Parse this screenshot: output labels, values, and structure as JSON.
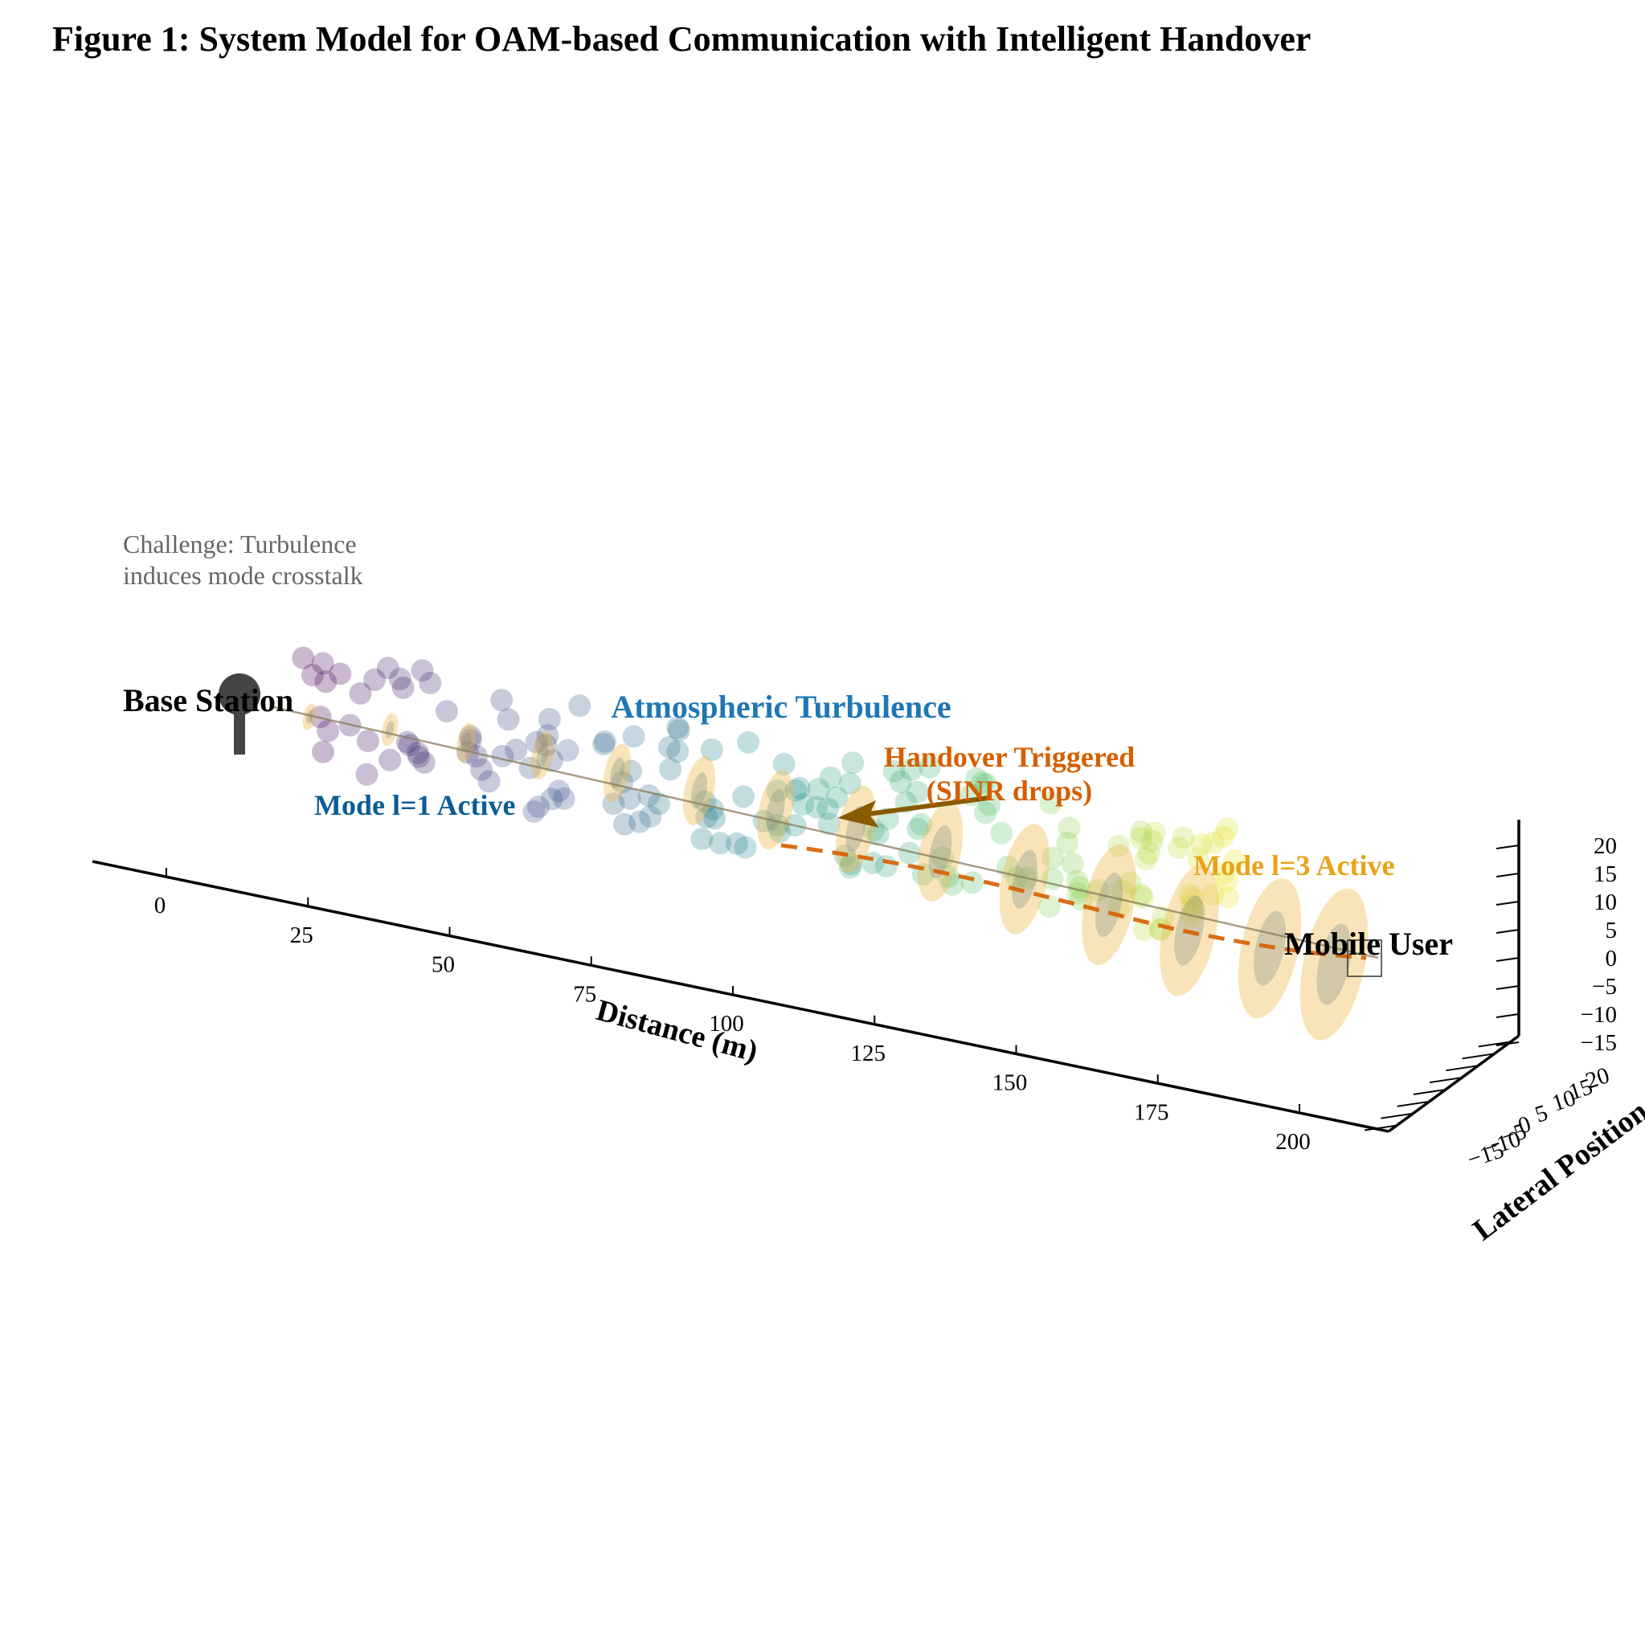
{
  "figure": {
    "title": "Figure 1: System Model for OAM-based Communication with Intelligent Handover",
    "note_lines": [
      "Challenge: Turbulence",
      "induces mode crosstalk"
    ]
  },
  "labels": {
    "base_station": "Base Station",
    "turbulence": "Atmospheric Turbulence",
    "handover_line1": "Handover Triggered",
    "handover_line2": "(SINR drops)",
    "mode1": "Mode l=1 Active",
    "mode3": "Mode l=3 Active",
    "mobile_user": "Mobile User"
  },
  "axes": {
    "x_label": "Distance (m)",
    "x_ticks": [
      "0",
      "25",
      "50",
      "75",
      "100",
      "125",
      "150",
      "175",
      "200"
    ],
    "y_label": "Lateral Position",
    "y_ticks": [
      "−15",
      "−10",
      "−5",
      "0",
      "5",
      "10",
      "15",
      "20"
    ],
    "z_ticks": [
      "20",
      "15",
      "10",
      "5",
      "0",
      "−5",
      "−10",
      "−15"
    ]
  },
  "colors": {
    "beam": "#e69f00",
    "handover": "#d55e00",
    "mode1": "#0b5c94",
    "turbulence": "#1f77b4",
    "mode3": "#e8a317",
    "station": "#444444"
  }
}
